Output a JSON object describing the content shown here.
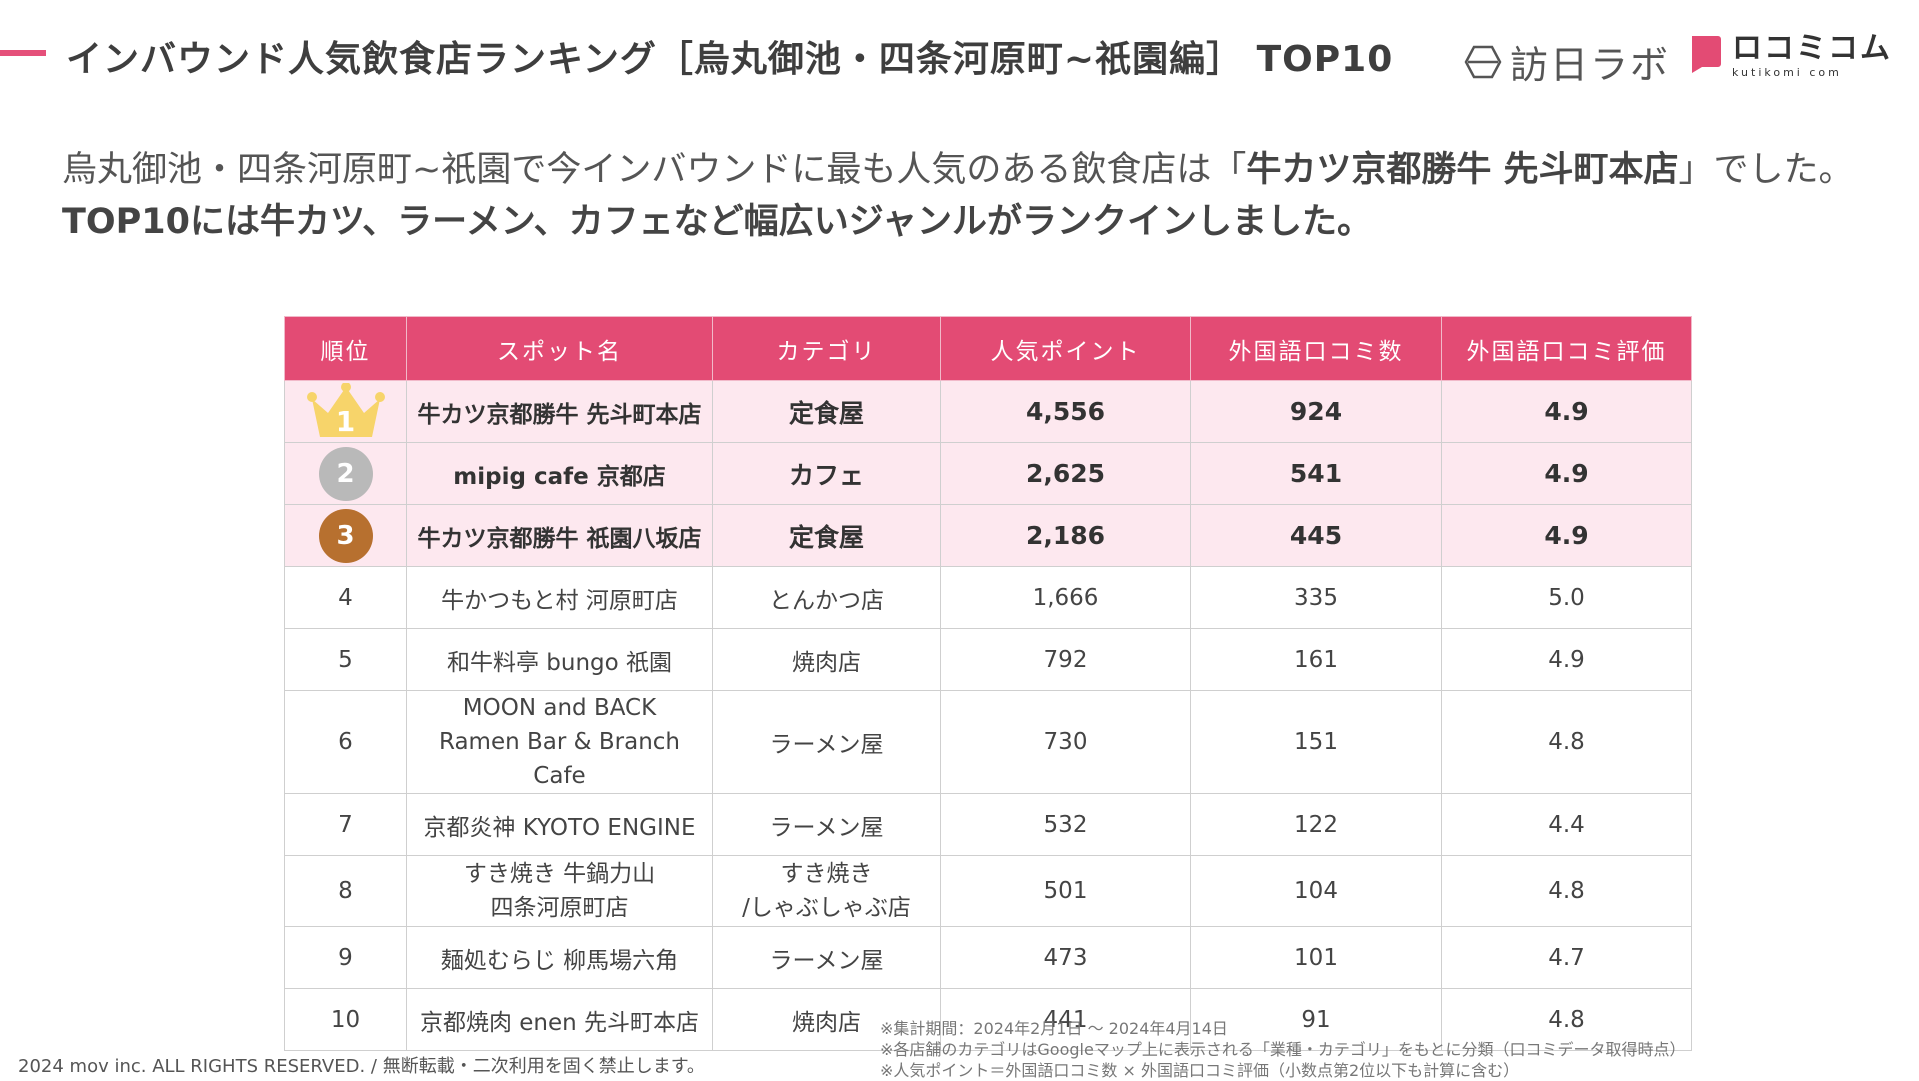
{
  "header": {
    "title": "インバウンド人気飲食店ランキング［烏丸御池・四条河原町~祇園編］ TOP10",
    "logo_houjitsu": "訪日ラボ",
    "logo_kutikomi_main": "ロコミコム",
    "logo_kutikomi_sub": "kutikomi com"
  },
  "lead": {
    "part1": "烏丸御池・四条河原町~祇園で今インバウンドに最も人気のある飲食店は「",
    "part2": "牛カツ京都勝牛 先斗町本店",
    "part3": "」でした。",
    "part4": "TOP10には牛カツ、ラーメン、カフェなど幅広いジャンルがランクインしました。"
  },
  "table": {
    "headers": [
      "順位",
      "スポット名",
      "カテゴリ",
      "人気ポイント",
      "外国語口コミ数",
      "外国語口コミ評価"
    ],
    "rows": [
      {
        "rank": "1",
        "name": "牛カツ京都勝牛 先斗町本店",
        "category": "定食屋",
        "points": "4,556",
        "reviews": "924",
        "rating": "4.9"
      },
      {
        "rank": "2",
        "name": "mipig cafe 京都店",
        "category": "カフェ",
        "points": "2,625",
        "reviews": "541",
        "rating": "4.9"
      },
      {
        "rank": "3",
        "name": "牛カツ京都勝牛 祇園八坂店",
        "category": "定食屋",
        "points": "2,186",
        "reviews": "445",
        "rating": "4.9"
      },
      {
        "rank": "4",
        "name": "牛かつもと村 河原町店",
        "category": "とんかつ店",
        "points": "1,666",
        "reviews": "335",
        "rating": "5.0"
      },
      {
        "rank": "5",
        "name": "和牛料亭 bungo 祇園",
        "category": "焼肉店",
        "points": "792",
        "reviews": "161",
        "rating": "4.9"
      },
      {
        "rank": "6",
        "name_line1": "MOON and BACK",
        "name_line2": "Ramen Bar & Branch Cafe",
        "category": "ラーメン屋",
        "points": "730",
        "reviews": "151",
        "rating": "4.8"
      },
      {
        "rank": "7",
        "name": "京都炎神 KYOTO ENGINE",
        "category": "ラーメン屋",
        "points": "532",
        "reviews": "122",
        "rating": "4.4"
      },
      {
        "rank": "8",
        "name_line1": "すき焼き 牛鍋力山",
        "name_line2": "四条河原町店",
        "category_line1": "すき焼き",
        "category_line2": "/しゃぶしゃぶ店",
        "points": "501",
        "reviews": "104",
        "rating": "4.8"
      },
      {
        "rank": "9",
        "name": "麺処むらじ 柳馬場六角",
        "category": "ラーメン屋",
        "points": "473",
        "reviews": "101",
        "rating": "4.7"
      },
      {
        "rank": "10",
        "name": "京都焼肉 enen 先斗町本店",
        "category": "焼肉店",
        "points": "441",
        "reviews": "91",
        "rating": "4.8"
      }
    ]
  },
  "footnotes": {
    "period": "※集計期間：2024年2月1日 〜 2024年4月14日",
    "category_note": "※各店舗のカテゴリはGoogleマップ上に表示される「業種・カテゴリ」をもとに分類（口コミデータ取得時点）",
    "points_note": "※人気ポイント＝外国語口コミ数 × 外国語口コミ評価（小数点第2位以下も計算に含む）"
  },
  "copyright": "2024 mov inc. ALL RIGHTS RESERVED. / 無断転載・二次利用を固く禁止します。",
  "colors": {
    "accent": "#e34b74",
    "top_row_bg": "#fde8ef",
    "gold": "#f7d46a",
    "silver": "#b9b9b9",
    "bronze": "#b7702f"
  },
  "icons": {
    "rank1": "crown-icon",
    "rank2": "silver-medal-icon",
    "rank3": "bronze-medal-icon"
  }
}
